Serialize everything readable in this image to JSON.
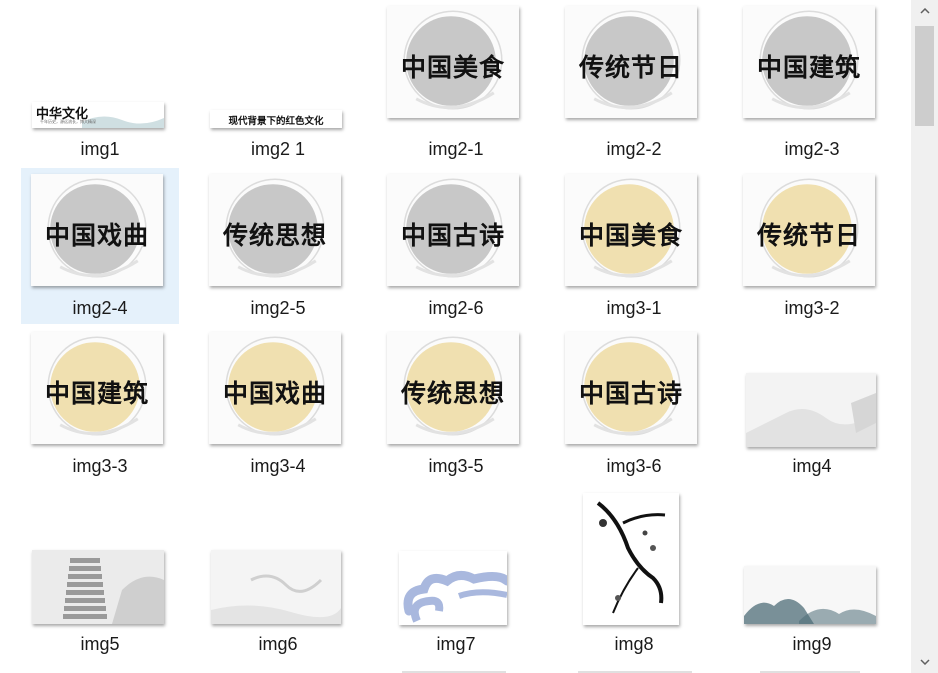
{
  "items": [
    {
      "label": "img1",
      "style": "banner1"
    },
    {
      "label": "img2 1",
      "style": "banner2"
    },
    {
      "label": "img2-1",
      "style": "gray",
      "text": "中国美食"
    },
    {
      "label": "img2-2",
      "style": "gray",
      "text": "传统节日"
    },
    {
      "label": "img2-3",
      "style": "gray",
      "text": "中国建筑"
    },
    {
      "label": "img2-4",
      "style": "gray",
      "text": "中国戏曲",
      "selected": true
    },
    {
      "label": "img2-5",
      "style": "gray",
      "text": "传统思想"
    },
    {
      "label": "img2-6",
      "style": "gray",
      "text": "中国古诗"
    },
    {
      "label": "img3-1",
      "style": "yellow",
      "text": "中国美食"
    },
    {
      "label": "img3-2",
      "style": "yellow",
      "text": "传统节日"
    },
    {
      "label": "img3-3",
      "style": "yellow",
      "text": "中国建筑"
    },
    {
      "label": "img3-4",
      "style": "yellow",
      "text": "中国戏曲"
    },
    {
      "label": "img3-5",
      "style": "yellow",
      "text": "传统思想"
    },
    {
      "label": "img3-6",
      "style": "yellow",
      "text": "中国古诗"
    },
    {
      "label": "img4",
      "style": "mist"
    },
    {
      "label": "img5",
      "style": "pagoda"
    },
    {
      "label": "img6",
      "style": "mist2"
    },
    {
      "label": "img7",
      "style": "cloud"
    },
    {
      "label": "img8",
      "style": "branch"
    },
    {
      "label": "img9",
      "style": "mountain"
    }
  ],
  "banner1": {
    "title": "中华文化",
    "subtitle": "千年历史，源远流长，博大精深"
  },
  "banner2": {
    "title": "现代背景下的红色文化"
  },
  "colors": {
    "gray_circle": "#c8c8c8",
    "yellow_circle": "#f0e0b0",
    "selection": "#e5f1fb",
    "cloud": "#a9b8de",
    "mountain": "#4f6e78"
  },
  "scrollbar": {
    "up_icon": "chevron-up-icon",
    "down_icon": "chevron-down-icon"
  }
}
